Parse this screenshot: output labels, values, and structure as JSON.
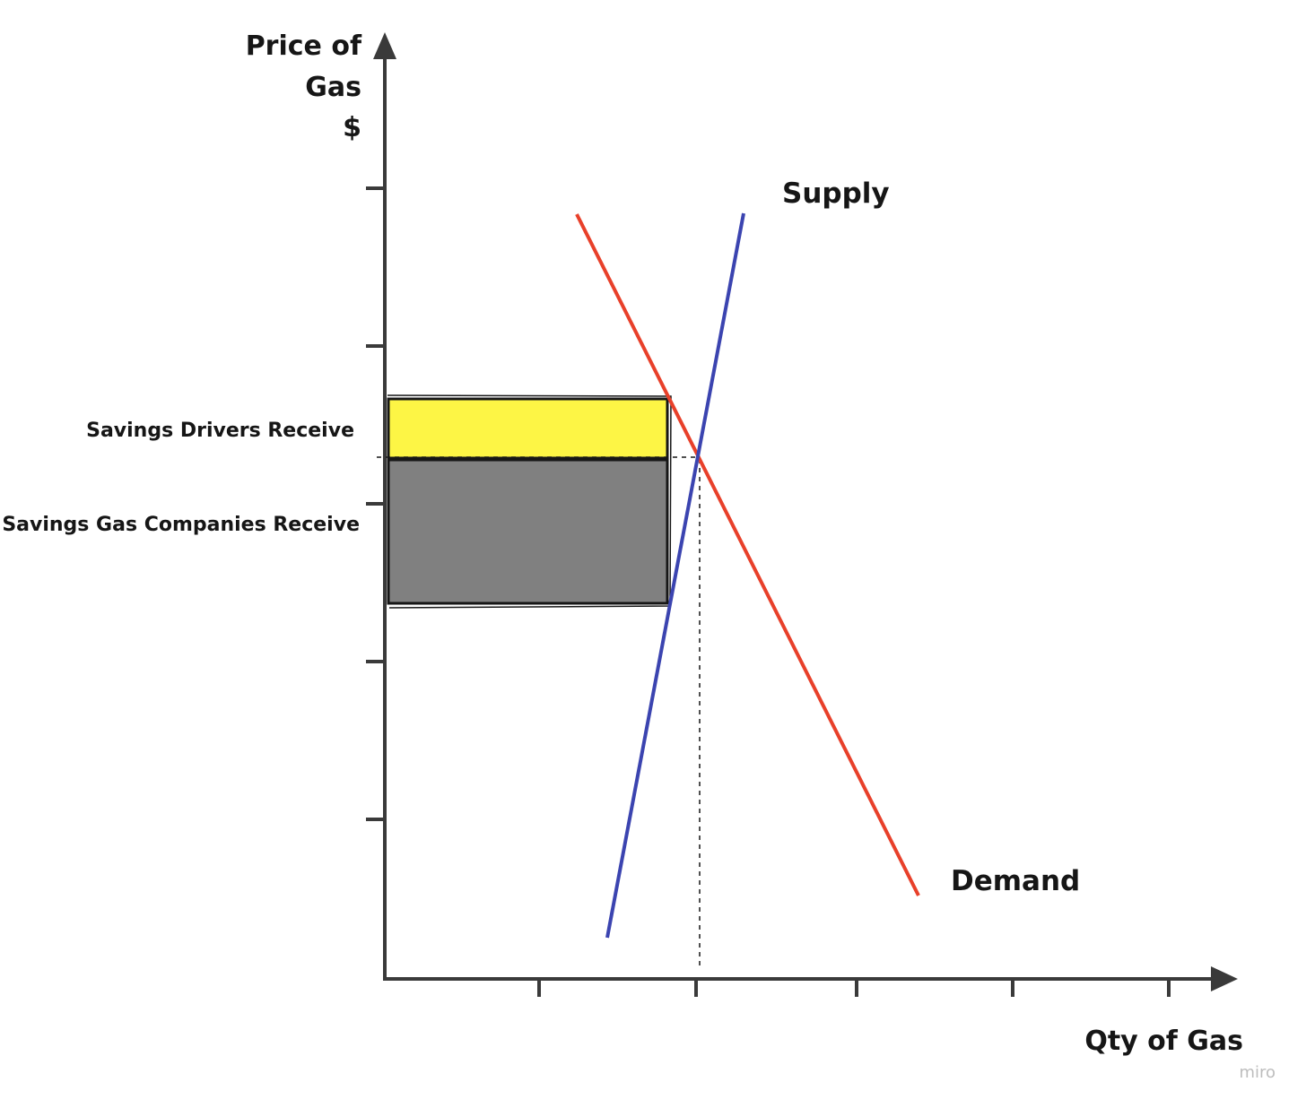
{
  "y_axis": {
    "title_lines": [
      "Price of",
      "Gas",
      "$"
    ]
  },
  "x_axis": {
    "title": "Qty of Gas"
  },
  "curves": {
    "supply": {
      "label": "Supply",
      "color": "#3b44b0"
    },
    "demand": {
      "label": "Demand",
      "color": "#e8402a"
    }
  },
  "areas": {
    "drivers": {
      "label": "Savings Drivers Receive",
      "color": "#fdf545"
    },
    "companies": {
      "label": "Savings Gas Companies Receive",
      "color": "#808080"
    }
  },
  "watermark": "miro"
}
